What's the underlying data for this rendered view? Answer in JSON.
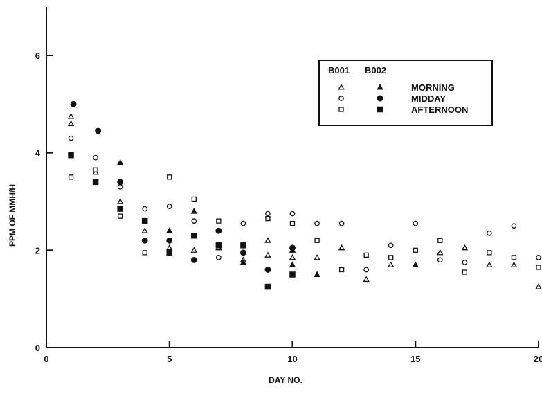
{
  "chart_data": {
    "type": "scatter",
    "title": "",
    "xlabel": "DAY NO.",
    "ylabel": "PPM OF MMH/H",
    "xlim": [
      0,
      20
    ],
    "ylim": [
      0,
      7
    ],
    "xticks": [
      0,
      5,
      10,
      15,
      20
    ],
    "yticks": [
      0,
      2,
      4,
      6
    ],
    "grid": false,
    "legend_position": "top-right",
    "legend": {
      "column_headers": [
        "B001",
        "B002"
      ],
      "rows": [
        "MORNING",
        "MIDDAY",
        "AFTERNOON"
      ]
    },
    "series": [
      {
        "vessel": "B001",
        "time": "MORNING",
        "marker": "triangle-open",
        "points": [
          [
            1,
            4.75
          ],
          [
            1,
            4.6
          ],
          [
            2,
            3.6
          ],
          [
            3,
            3.0
          ],
          [
            4,
            2.4
          ],
          [
            5,
            2.05
          ],
          [
            6,
            2.0
          ],
          [
            7,
            2.05
          ],
          [
            8,
            1.8
          ],
          [
            9,
            2.2
          ],
          [
            9,
            1.9
          ],
          [
            10,
            1.85
          ],
          [
            11,
            1.85
          ],
          [
            12,
            2.05
          ],
          [
            13,
            1.4
          ],
          [
            14,
            1.7
          ],
          [
            16,
            1.95
          ],
          [
            17,
            2.05
          ],
          [
            18,
            1.7
          ],
          [
            19,
            1.7
          ],
          [
            20,
            1.25
          ]
        ]
      },
      {
        "vessel": "B002",
        "time": "MORNING",
        "marker": "triangle-filled",
        "points": [
          [
            3,
            3.8
          ],
          [
            5,
            2.4
          ],
          [
            6,
            2.8
          ],
          [
            8,
            1.75
          ],
          [
            10,
            2.0
          ],
          [
            10,
            1.7
          ],
          [
            11,
            1.5
          ],
          [
            15,
            1.7
          ]
        ]
      },
      {
        "vessel": "B001",
        "time": "MIDDAY",
        "marker": "circle-open",
        "points": [
          [
            1,
            4.3
          ],
          [
            2,
            3.9
          ],
          [
            3,
            3.3
          ],
          [
            4,
            2.85
          ],
          [
            5,
            2.9
          ],
          [
            6,
            2.6
          ],
          [
            7,
            1.85
          ],
          [
            8,
            2.55
          ],
          [
            9,
            2.75
          ],
          [
            10,
            2.75
          ],
          [
            11,
            2.55
          ],
          [
            12,
            2.55
          ],
          [
            13,
            1.6
          ],
          [
            14,
            2.1
          ],
          [
            15,
            2.55
          ],
          [
            16,
            1.8
          ],
          [
            17,
            1.75
          ],
          [
            18,
            2.35
          ],
          [
            19,
            2.5
          ],
          [
            20,
            1.85
          ]
        ]
      },
      {
        "vessel": "B002",
        "time": "MIDDAY",
        "marker": "circle-filled",
        "points": [
          [
            1.1,
            5.0
          ],
          [
            2.1,
            4.45
          ],
          [
            3,
            3.4
          ],
          [
            4,
            2.2
          ],
          [
            5,
            2.2
          ],
          [
            6,
            1.8
          ],
          [
            7,
            2.4
          ],
          [
            8,
            1.95
          ],
          [
            9,
            1.6
          ],
          [
            10,
            2.05
          ]
        ]
      },
      {
        "vessel": "B001",
        "time": "AFTERNOON",
        "marker": "square-open",
        "points": [
          [
            1,
            3.5
          ],
          [
            2,
            3.65
          ],
          [
            3,
            2.7
          ],
          [
            4,
            1.95
          ],
          [
            5,
            3.5
          ],
          [
            6,
            3.05
          ],
          [
            7,
            2.6
          ],
          [
            9,
            2.65
          ],
          [
            10,
            2.55
          ],
          [
            11,
            2.2
          ],
          [
            12,
            1.6
          ],
          [
            13,
            1.9
          ],
          [
            14,
            1.85
          ],
          [
            15,
            2.0
          ],
          [
            16,
            2.2
          ],
          [
            17,
            1.55
          ],
          [
            18,
            1.95
          ],
          [
            19,
            1.85
          ],
          [
            20,
            1.65
          ]
        ]
      },
      {
        "vessel": "B002",
        "time": "AFTERNOON",
        "marker": "square-filled",
        "points": [
          [
            1,
            3.95
          ],
          [
            2,
            3.4
          ],
          [
            3,
            2.85
          ],
          [
            4,
            2.6
          ],
          [
            5,
            1.95
          ],
          [
            6,
            2.3
          ],
          [
            7,
            2.1
          ],
          [
            8,
            2.1
          ],
          [
            9,
            1.25
          ],
          [
            10,
            1.5
          ]
        ]
      }
    ]
  }
}
